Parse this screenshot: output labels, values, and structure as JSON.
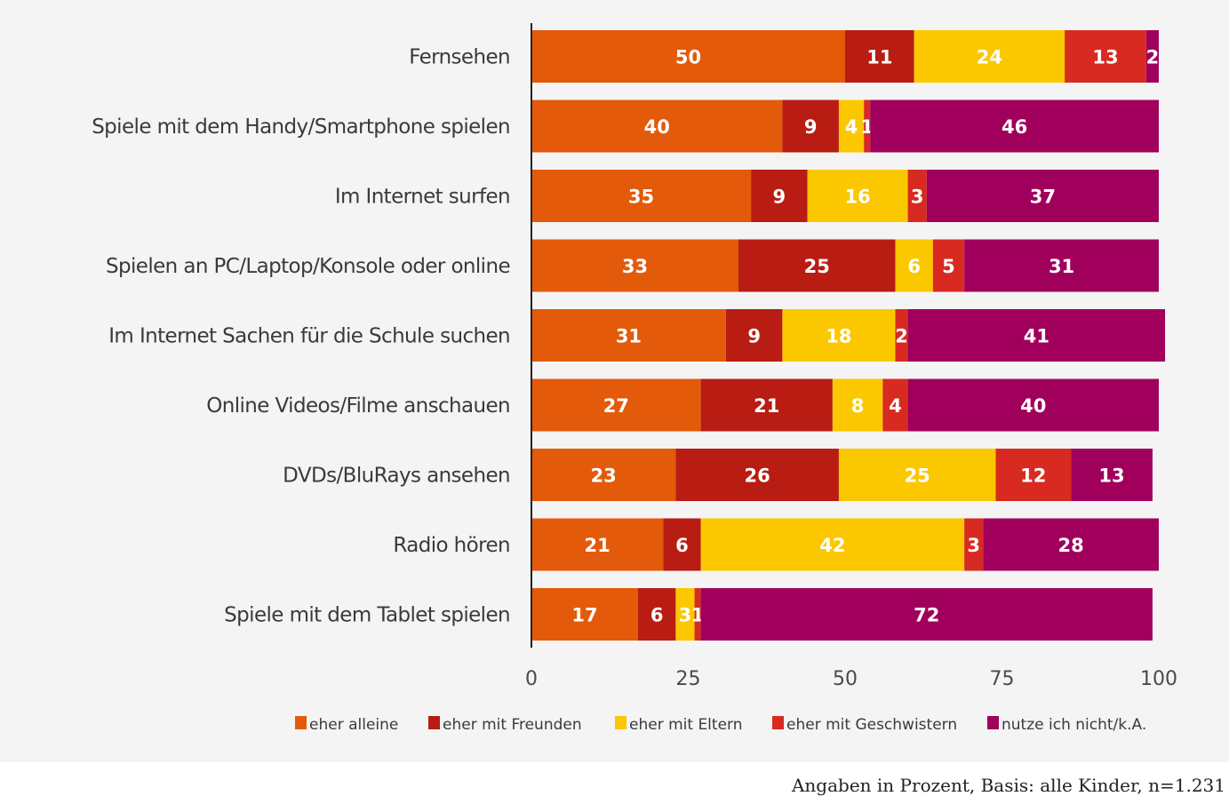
{
  "chart_data": {
    "type": "bar",
    "orientation": "horizontal",
    "stacked": true,
    "title": "",
    "xlabel": "",
    "ylabel": "",
    "xlim": [
      0,
      100
    ],
    "x_ticks": [
      0,
      25,
      50,
      75,
      100
    ],
    "grid": false,
    "legend_position": "bottom",
    "categories": [
      "Fernsehen",
      "Spiele mit dem Handy/Smartphone spielen",
      "Im Internet surfen",
      "Spielen an PC/Laptop/Konsole oder online",
      "Im Internet Sachen für die Schule suchen",
      "Online Videos/Filme anschauen",
      "DVDs/BluRays ansehen",
      "Radio hören",
      "Spiele mit dem Tablet spielen"
    ],
    "series": [
      {
        "name": "eher alleine",
        "color": "#e35a0a",
        "values": [
          50,
          40,
          35,
          33,
          31,
          27,
          23,
          21,
          17
        ]
      },
      {
        "name": "eher mit Freunden",
        "color": "#b81c12",
        "values": [
          11,
          9,
          9,
          25,
          9,
          21,
          26,
          6,
          6
        ]
      },
      {
        "name": "eher mit Eltern",
        "color": "#fbc800",
        "values": [
          24,
          4,
          16,
          6,
          18,
          8,
          25,
          42,
          3
        ]
      },
      {
        "name": "eher mit Geschwistern",
        "color": "#d82a20",
        "values": [
          13,
          1,
          3,
          5,
          2,
          4,
          12,
          3,
          1
        ]
      },
      {
        "name": "nutze ich nicht/k.A.",
        "color": "#a0005c",
        "values": [
          2,
          46,
          37,
          31,
          41,
          40,
          13,
          28,
          72
        ]
      }
    ]
  },
  "footer": {
    "note": "Angaben in Prozent, Basis: alle Kinder, n=1.231"
  }
}
